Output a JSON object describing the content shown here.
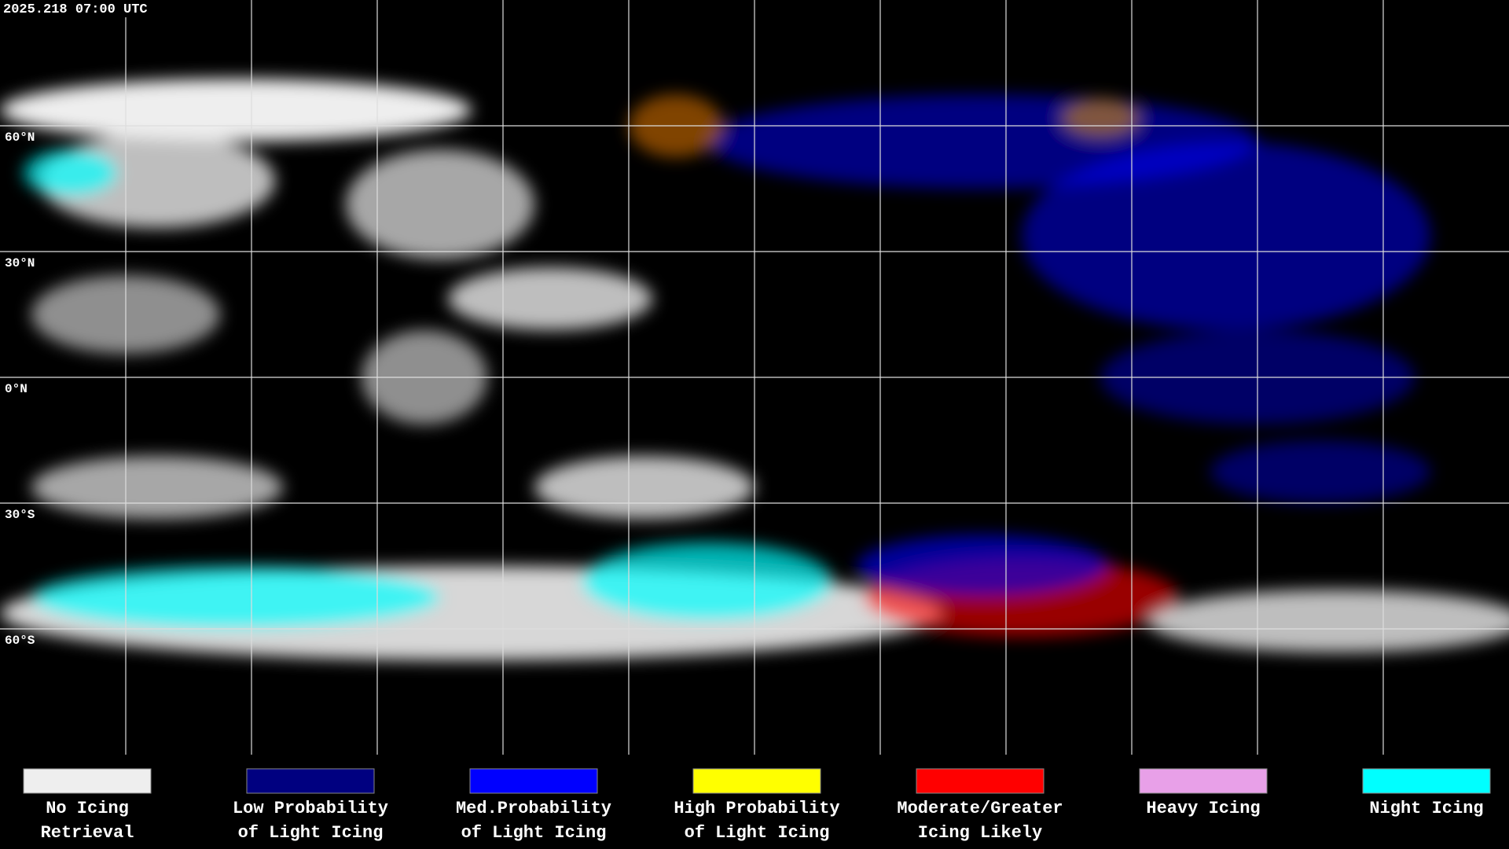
{
  "header": {
    "timestamp": "2025.218 07:00 UTC"
  },
  "map": {
    "lat_labels": [
      "60°N",
      "30°N",
      "0°N",
      "30°S",
      "60°S"
    ]
  },
  "legend": {
    "items": [
      {
        "color": "#eeeeee",
        "lines": [
          "No Icing",
          "Retrieval"
        ]
      },
      {
        "color": "#000080",
        "lines": [
          "Low Probability",
          "of Light Icing"
        ]
      },
      {
        "color": "#0000ff",
        "lines": [
          "Med.Probability",
          "of Light Icing"
        ]
      },
      {
        "color": "#ffff00",
        "lines": [
          "High Probability",
          "of Light Icing"
        ]
      },
      {
        "color": "#ff0000",
        "lines": [
          "Moderate/Greater",
          "Icing Likely"
        ]
      },
      {
        "color": "#e8a0e8",
        "lines": [
          "Heavy Icing"
        ]
      },
      {
        "color": "#00ffff",
        "lines": [
          "Night Icing"
        ]
      }
    ]
  }
}
